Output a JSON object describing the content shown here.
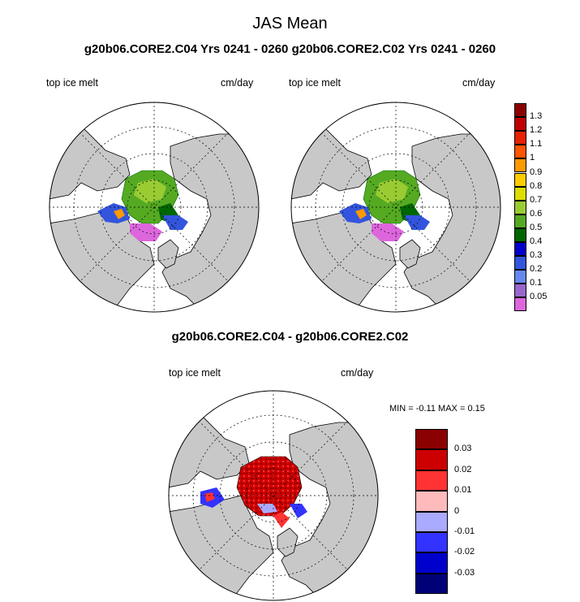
{
  "figure": {
    "title": "JAS Mean",
    "subtitle": "g20b06.CORE2.C04  Yrs 0241 - 0260 g20b06.CORE2.C02  Yrs 0241 - 0260",
    "diff_title": "g20b06.CORE2.C04 - g20b06.CORE2.C02"
  },
  "panels": [
    {
      "variable": "top ice melt",
      "units": "cm/day"
    },
    {
      "variable": "top ice melt",
      "units": "cm/day"
    },
    {
      "variable": "top ice melt",
      "units": "cm/day"
    }
  ],
  "stats": {
    "min_label": "MIN =",
    "min": "-0.11",
    "max_label": "MAX =",
    "max": "0.15"
  },
  "colorbar_main": {
    "labels": [
      "1.3",
      "1.2",
      "1.1",
      "1",
      "0.9",
      "0.8",
      "0.7",
      "0.6",
      "0.5",
      "0.4",
      "0.3",
      "0.2",
      "0.1",
      "0.05"
    ],
    "colors": [
      "#8b0000",
      "#c00000",
      "#e62200",
      "#ff5500",
      "#ff9900",
      "#ffcc00",
      "#dddd00",
      "#99cc33",
      "#55aa22",
      "#006600",
      "#0000cc",
      "#3355dd",
      "#6688ee",
      "#9966cc",
      "#dd66dd"
    ]
  },
  "colorbar_diff": {
    "labels": [
      "0.03",
      "0.02",
      "0.01",
      "0",
      "-0.01",
      "-0.02",
      "-0.03"
    ],
    "colors": [
      "#8b0000",
      "#cc0000",
      "#ff3333",
      "#ffbbbb",
      "#aaaaff",
      "#3333ff",
      "#0000cc",
      "#000077"
    ]
  },
  "colors": {
    "land": "#c8c8c8",
    "ocean": "#ffffff",
    "grid": "#000000"
  }
}
